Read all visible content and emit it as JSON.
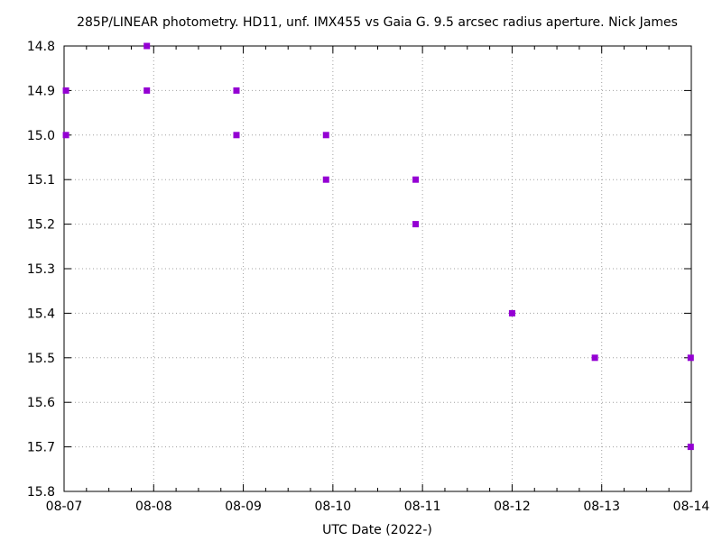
{
  "chart_data": {
    "type": "scatter",
    "title": "285P/LINEAR photometry. HD11, unf. IMX455 vs Gaia G. 9.5 arcsec radius aperture. Nick James",
    "xlabel": "UTC Date (2022-)",
    "ylabel": "",
    "x_tick_labels": [
      "08-07",
      "08-08",
      "08-09",
      "08-10",
      "08-11",
      "08-12",
      "08-13",
      "08-14"
    ],
    "y_tick_labels": [
      "14.8",
      "14.9",
      "15.0",
      "15.1",
      "15.2",
      "15.3",
      "15.4",
      "15.5",
      "15.6",
      "15.7",
      "15.8"
    ],
    "x_range": [
      "2022-08-07",
      "2022-08-14"
    ],
    "ylim": [
      14.8,
      15.8
    ],
    "y_axis_inverted": true,
    "grid": true,
    "marker_color": "#9400d3",
    "series": [
      {
        "x": [
          "2022-08-07T00:30",
          "2022-08-07T00:30",
          "2022-08-07T22:10",
          "2022-08-07T22:10",
          "2022-08-08T22:10",
          "2022-08-08T22:10",
          "2022-08-09T22:10",
          "2022-08-09T22:10",
          "2022-08-10T22:10",
          "2022-08-10T22:10",
          "2022-08-12T00:00",
          "2022-08-12T22:10",
          "2022-08-13T23:50",
          "2022-08-13T23:50"
        ],
        "y": [
          14.9,
          15.0,
          14.8,
          14.9,
          14.9,
          15.0,
          15.0,
          15.1,
          15.1,
          15.2,
          15.4,
          15.5,
          15.5,
          15.7
        ]
      }
    ]
  }
}
